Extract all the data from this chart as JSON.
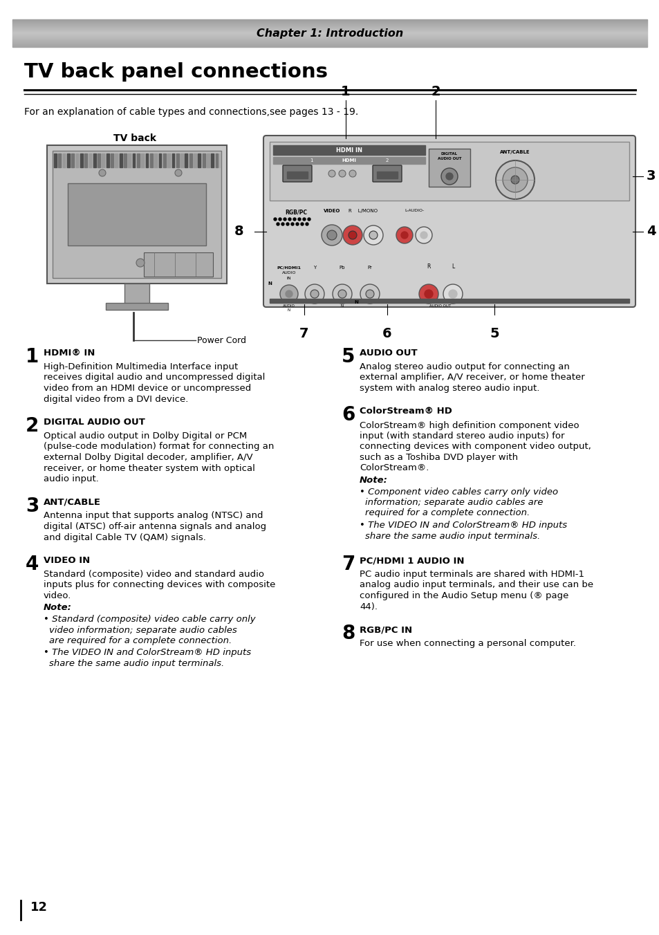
{
  "page_bg": "#ffffff",
  "header_text": "Chapter 1: Introduction",
  "section_title": "TV back panel connections",
  "intro_text": "For an explanation of cable types and connections,see pages 13 - 19.",
  "tv_back_label": "TV back",
  "power_cord_label": "Power Cord",
  "items_left": [
    {
      "num": "1",
      "title": "HDMI® IN",
      "body_lines": [
        "High-Definition Multimedia Interface input",
        "receives digital audio and uncompressed digital",
        "video from an HDMI device or uncompressed",
        "digital video from a DVI device."
      ]
    },
    {
      "num": "2",
      "title": "DIGITAL AUDIO OUT",
      "body_lines": [
        "Optical audio output in Dolby Digital or PCM",
        "(pulse-code modulation) format for connecting an",
        "external Dolby Digital decoder, amplifier, A/V",
        "receiver, or home theater system with optical",
        "audio input."
      ]
    },
    {
      "num": "3",
      "title": "ANT/CABLE",
      "body_lines": [
        "Antenna input that supports analog (NTSC) and",
        "digital (ATSC) off-air antenna signals and analog",
        "and digital Cable TV (QAM) signals."
      ]
    },
    {
      "num": "4",
      "title": "VIDEO IN",
      "body_lines": [
        "Standard (composite) video and standard audio",
        "inputs plus for connecting devices with composite",
        "video."
      ],
      "note_label": "Note:",
      "note_bullets": [
        [
          "Standard (composite) video cable carry only",
          "video information; separate audio cables",
          "are required for a complete connection."
        ],
        [
          "The VIDEO IN and ColorStream® HD inputs",
          "share the same audio input terminals."
        ]
      ]
    }
  ],
  "items_right": [
    {
      "num": "5",
      "title": "AUDIO OUT",
      "body_lines": [
        "Analog stereo audio output for connecting an",
        "external amplifier, A/V receiver, or home theater",
        "system with analog stereo audio input."
      ]
    },
    {
      "num": "6",
      "title_parts": [
        {
          "text": "ColorStream",
          "style": "bold_serif"
        },
        {
          "text": "®",
          "style": "sup"
        },
        {
          "text": " HD",
          "style": "bold_serif"
        }
      ],
      "title": "ColorStream® HD",
      "title_colorstream": true,
      "body_lines": [
        "ColorStream® high definition component video",
        "input (with standard stereo audio inputs) for",
        "connecting devices with component video output,",
        "such as a Toshiba DVD player with",
        "ColorStream®."
      ],
      "note_label": "Note:",
      "note_bullets": [
        [
          "Component video cables carry only video",
          "information; separate audio cables are",
          "required for a complete connection."
        ],
        [
          "The VIDEO IN and ColorStream® HD inputs",
          "share the same audio input terminals."
        ]
      ]
    },
    {
      "num": "7",
      "title": "PC/HDMI 1 AUDIO IN",
      "body_lines": [
        "PC audio input terminals are shared with HDMI-1",
        "analog audio input terminals, and their use can be",
        "configured in the Audio Setup menu (® page",
        "44)."
      ]
    },
    {
      "num": "8",
      "title": "RGB/PC IN",
      "body_lines": [
        "For use when connecting a personal computer."
      ]
    }
  ],
  "page_number": "12"
}
